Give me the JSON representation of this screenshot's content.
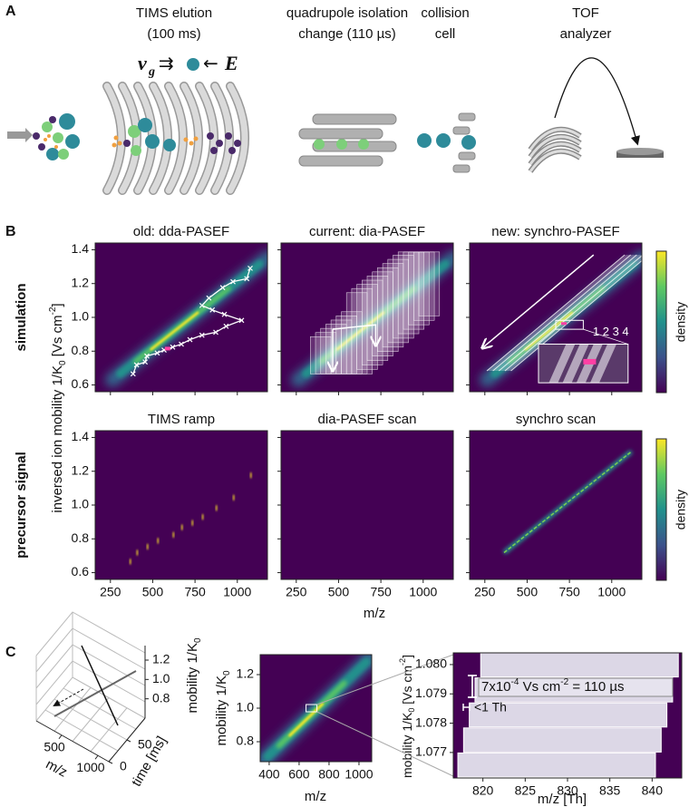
{
  "panel_a": {
    "label": "A",
    "stages": [
      {
        "title_lines": [
          "TIMS elution",
          "(100 ms)"
        ]
      },
      {
        "title_lines": [
          "quadrupole isolation",
          "change (110 µs)"
        ]
      },
      {
        "title_lines": [
          "collision",
          "cell"
        ]
      },
      {
        "title_lines": [
          "TOF",
          "analyzer"
        ]
      }
    ],
    "formula": {
      "velocity": "v",
      "velocity_sub": "g",
      "drift_arrow": "⇉",
      "field_arrow": "←",
      "field": "E"
    }
  },
  "panel_b": {
    "label": "B",
    "rows": [
      {
        "label": "simulation",
        "titles": [
          "old: dda-PASEF",
          "current: dia-PASEF",
          "new: synchro-PASEF"
        ]
      },
      {
        "label": "precursor signal",
        "titles": [
          "TIMS ramp",
          "dia-PASEF scan",
          "synchro scan"
        ]
      }
    ],
    "y_label": {
      "text": "inversed ion mobility 1/K",
      "sub": "0",
      "unit": "  [Vs cm",
      "sup": "-2",
      "close": "]"
    },
    "x_label": "m/z",
    "colorbar_label": "density",
    "inset_label": "1 2 3 4",
    "xlim": [
      160,
      1178
    ],
    "xticks": [
      250,
      500,
      750,
      1000
    ],
    "ylim": [
      0.56,
      1.44
    ],
    "yticks": [
      0.6,
      0.8,
      {
        "value": 1,
        "label": "1.0"
      },
      1.2,
      1.4
    ]
  },
  "panel_c": {
    "label": "C",
    "cube": {
      "x_label": "m/z",
      "xlim": [
        150,
        1150
      ],
      "xticks": [
        500,
        1000
      ],
      "y_label": "time [ms]",
      "ylim": [
        0,
        100
      ],
      "yticks": [
        0,
        50
      ],
      "z_label": "mobility 1/K",
      "z_sub": "0",
      "zlim": [
        0.6,
        1.35
      ],
      "zticks": [
        0.8,
        {
          "value": 1,
          "label": "1.0"
        },
        1.2
      ]
    },
    "map": {
      "x_label": "m/z",
      "y_label": "mobility 1/K",
      "y_sub": "0",
      "xlim": [
        340,
        1085
      ],
      "xticks": [
        400,
        600,
        800,
        1000
      ],
      "ylim": [
        0.681,
        1.319
      ],
      "yticks": [
        0.8,
        {
          "value": 1,
          "label": "1.0"
        },
        1.2
      ]
    },
    "zoom": {
      "x_label": "m/z [Th]",
      "y_label": {
        "text": "mobility 1/K",
        "sub": "0",
        "unit": " [Vs cm",
        "sup": "-2",
        "close": "]"
      },
      "xlim": [
        816.5,
        843.5
      ],
      "xticks": [
        820,
        825,
        830,
        835,
        840
      ],
      "ylim": [
        1.07613,
        1.0804
      ],
      "yticks": [
        1.077,
        1.078,
        1.079,
        {
          "value": 1.08,
          "label": "1.080"
        }
      ],
      "window_note": {
        "text": "7x10",
        "sup": "-4",
        "mid": " Vs cm",
        "sup2": "-2",
        "rest": " = 110 µs"
      },
      "width_note": "<1 Th"
    }
  }
}
